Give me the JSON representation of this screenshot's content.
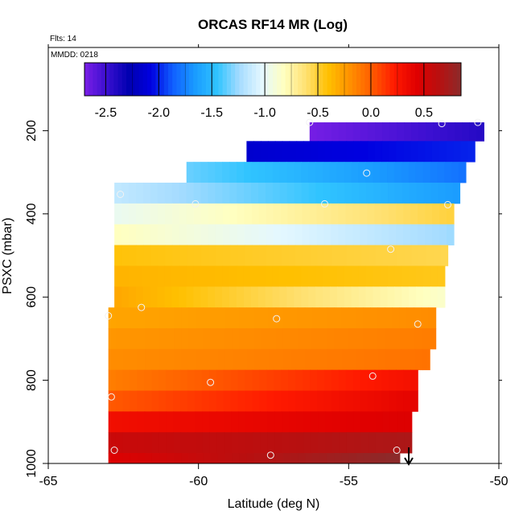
{
  "chart_data": {
    "type": "heatmap",
    "title": "ORCAS RF14 MR (Log)",
    "flight_label": "Flts: 14",
    "date_label": "MMDD: 0218",
    "xlabel": "Latitude (deg N)",
    "ylabel": "PSXC (mbar)",
    "xlim": [
      -65,
      -50
    ],
    "ylim": [
      1000,
      0
    ],
    "x_ticks": [
      -65,
      -60,
      -55,
      -50
    ],
    "y_ticks": [
      200,
      400,
      600,
      800,
      1000
    ],
    "colorbar": {
      "range": [
        -2.7,
        0.85
      ],
      "ticks": [
        -2.5,
        -2.0,
        -1.5,
        -1.0,
        -0.5,
        0.0,
        0.5
      ],
      "tick_labels": [
        "-2.5",
        "-2.0",
        "-1.5",
        "-1.0",
        "-0.5",
        "0.0",
        "0.5"
      ],
      "colors": [
        "#7a1fe6",
        "#3a0fd0",
        "#0000b0",
        "#0000e0",
        "#1060ff",
        "#1a9cff",
        "#30c4ff",
        "#a6dcff",
        "#e4f8ff",
        "#ffffc0",
        "#ffe070",
        "#ffc000",
        "#ff9000",
        "#ff5a00",
        "#ff1a00",
        "#e00000",
        "#b81010",
        "#8c2a2a"
      ]
    },
    "bands": [
      {
        "p_top": 180,
        "p_bot": 225,
        "lat_start": -56.3,
        "lat_end": -50.5,
        "v_start": -2.68,
        "v_end": -2.42
      },
      {
        "p_top": 225,
        "p_bot": 275,
        "lat_start": -58.4,
        "lat_end": -50.8,
        "v_start": -2.15,
        "v_end": -2.0
      },
      {
        "p_top": 275,
        "p_bot": 325,
        "lat_start": -60.4,
        "lat_end": -51.1,
        "v_start": -1.35,
        "v_end": -1.8
      },
      {
        "p_top": 325,
        "p_bot": 375,
        "lat_start": -62.8,
        "lat_end": -51.3,
        "v_start": -1.15,
        "v_end": -1.65
      },
      {
        "p_top": 375,
        "p_bot": 425,
        "lat_start": -62.8,
        "lat_end": -51.5,
        "v_start": -0.98,
        "v_end": -0.52
      },
      {
        "p_top": 425,
        "p_bot": 475,
        "lat_start": -62.8,
        "lat_end": -51.5,
        "v_start": -0.82,
        "v_end": -1.25
      },
      {
        "p_top": 475,
        "p_bot": 525,
        "lat_start": -62.8,
        "lat_end": -51.7,
        "v_start": -0.42,
        "v_end": -0.55
      },
      {
        "p_top": 525,
        "p_bot": 575,
        "lat_start": -62.8,
        "lat_end": -51.8,
        "v_start": -0.35,
        "v_end": -0.45
      },
      {
        "p_top": 575,
        "p_bot": 625,
        "lat_start": -62.8,
        "lat_end": -51.8,
        "v_start": -0.3,
        "v_end": -0.85
      },
      {
        "p_top": 625,
        "p_bot": 675,
        "lat_start": -63.0,
        "lat_end": -52.1,
        "v_start": -0.28,
        "v_end": -0.18
      },
      {
        "p_top": 675,
        "p_bot": 725,
        "lat_start": -63.0,
        "lat_end": -52.1,
        "v_start": -0.22,
        "v_end": -0.12
      },
      {
        "p_top": 725,
        "p_bot": 775,
        "lat_start": -63.0,
        "lat_end": -52.3,
        "v_start": -0.18,
        "v_end": -0.08
      },
      {
        "p_top": 775,
        "p_bot": 825,
        "lat_start": -63.0,
        "lat_end": -52.7,
        "v_start": -0.12,
        "v_end": 0.3
      },
      {
        "p_top": 825,
        "p_bot": 875,
        "lat_start": -63.0,
        "lat_end": -52.7,
        "v_start": 0.02,
        "v_end": 0.4
      },
      {
        "p_top": 875,
        "p_bot": 925,
        "lat_start": -63.0,
        "lat_end": -52.9,
        "v_start": 0.32,
        "v_end": 0.45
      },
      {
        "p_top": 925,
        "p_bot": 975,
        "lat_start": -63.0,
        "lat_end": -52.9,
        "v_start": 0.55,
        "v_end": 0.7
      },
      {
        "p_top": 975,
        "p_bot": 1000,
        "lat_start": -63.0,
        "lat_end": -53.3,
        "v_start": 0.45,
        "v_end": 0.85
      }
    ],
    "sample_points": [
      {
        "lat": -56.3,
        "p": 180
      },
      {
        "lat": -51.9,
        "p": 183
      },
      {
        "lat": -50.7,
        "p": 180
      },
      {
        "lat": -54.4,
        "p": 302
      },
      {
        "lat": -62.6,
        "p": 353
      },
      {
        "lat": -60.1,
        "p": 376
      },
      {
        "lat": -55.8,
        "p": 376
      },
      {
        "lat": -51.7,
        "p": 378
      },
      {
        "lat": -53.6,
        "p": 485
      },
      {
        "lat": -61.9,
        "p": 625
      },
      {
        "lat": -57.4,
        "p": 652
      },
      {
        "lat": -52.7,
        "p": 665
      },
      {
        "lat": -63.0,
        "p": 645
      },
      {
        "lat": -54.2,
        "p": 790
      },
      {
        "lat": -59.6,
        "p": 805
      },
      {
        "lat": -62.9,
        "p": 840
      },
      {
        "lat": -62.8,
        "p": 968
      },
      {
        "lat": -57.6,
        "p": 980
      },
      {
        "lat": -53.4,
        "p": 968
      }
    ],
    "arrow_lat": -53.0
  }
}
